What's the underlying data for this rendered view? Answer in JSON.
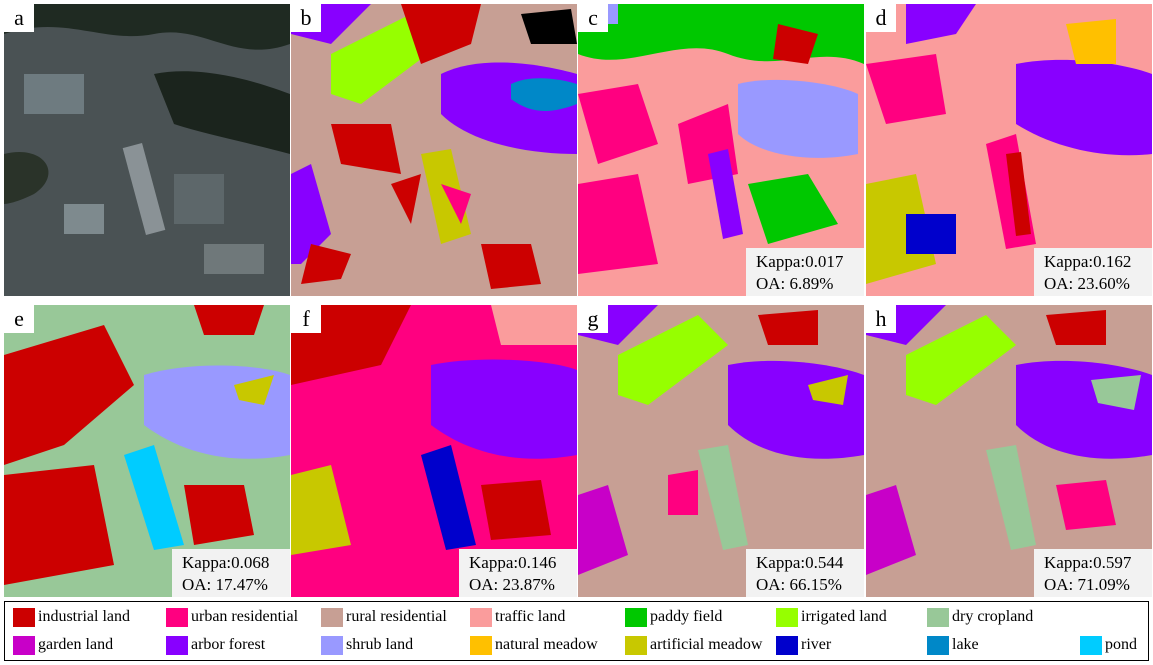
{
  "panels": [
    {
      "id": "a",
      "label": "a"
    },
    {
      "id": "b",
      "label": "b"
    },
    {
      "id": "c",
      "label": "c",
      "kappa": "Kappa:0.017",
      "oa": "OA: 6.89%"
    },
    {
      "id": "d",
      "label": "d",
      "kappa": "Kappa:0.162",
      "oa": "OA: 23.60%"
    },
    {
      "id": "e",
      "label": "e",
      "kappa": "Kappa:0.068",
      "oa": "OA: 17.47%"
    },
    {
      "id": "f",
      "label": "f",
      "kappa": "Kappa:0.146",
      "oa": "OA: 23.87%"
    },
    {
      "id": "g",
      "label": "g",
      "kappa": "Kappa:0.544",
      "oa": "OA: 66.15%"
    },
    {
      "id": "h",
      "label": "h",
      "kappa": "Kappa:0.597",
      "oa": "OA: 71.09%"
    }
  ],
  "legend": [
    {
      "label": "industrial land",
      "color": "#cc0000"
    },
    {
      "label": "urban residential",
      "color": "#ff0080"
    },
    {
      "label": "rural residential",
      "color": "#c79f94"
    },
    {
      "label": "traffic land",
      "color": "#fa9c9c"
    },
    {
      "label": "paddy field",
      "color": "#00c800"
    },
    {
      "label": "irrigated land",
      "color": "#96ff00"
    },
    {
      "label": "dry cropland",
      "color": "#98c898"
    },
    {
      "label": "garden land",
      "color": "#c800c8"
    },
    {
      "label": "arbor forest",
      "color": "#8800ff"
    },
    {
      "label": "shrub land",
      "color": "#9999ff"
    },
    {
      "label": "natural meadow",
      "color": "#ffc000"
    },
    {
      "label": "artificial meadow",
      "color": "#c8c800"
    },
    {
      "label": "river",
      "color": "#0000cc"
    },
    {
      "label": "lake",
      "color": "#0088c8"
    },
    {
      "label": "pond",
      "color": "#00ccff"
    }
  ]
}
